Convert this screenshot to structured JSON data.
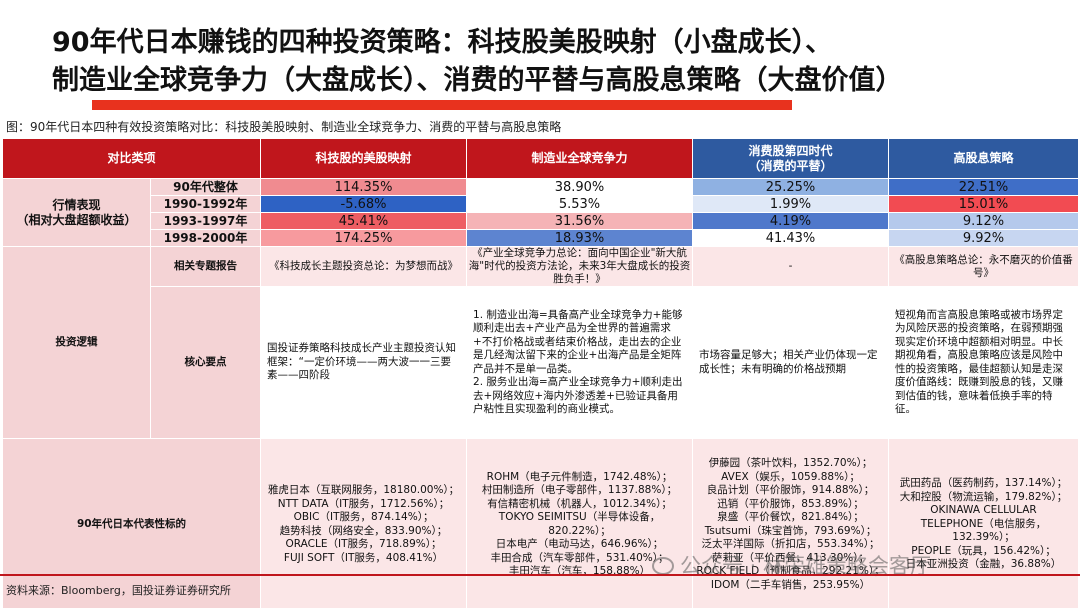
{
  "title": {
    "line1": "90年代日本赚钱的四种投资策略：科技股美股映射（小盘成长）、",
    "line2": "制造业全球竞争力（大盘成长）、消费的平替与高股息策略（大盘价值）"
  },
  "caption": "图：90年代日本四种有效投资策略对比：科技股美股映射、制造业全球竞争力、消费的平替与高股息策略",
  "header": {
    "col0": "对比类项",
    "col1": "科技股的美股映射",
    "col2": "制造业全球竞争力",
    "col3_line1": "消费股第四时代",
    "col3_line2": "（消费的平替）",
    "col4": "高股息策略"
  },
  "performance": {
    "label_line1": "行情表现",
    "label_line2": "（相对大盘超额收益）",
    "rows": [
      {
        "period": "90年代整体",
        "values": [
          "114.35%",
          "38.90%",
          "25.25%",
          "22.51%"
        ],
        "colors": [
          "#f08b90",
          "#ffffff",
          "#8fb1e2",
          "#3f6ec7"
        ]
      },
      {
        "period": "1990-1992年",
        "values": [
          "-5.68%",
          "5.53%",
          "1.99%",
          "15.01%"
        ],
        "colors": [
          "#2e62c4",
          "#ffffff",
          "#dfe8f7",
          "#f24b52"
        ]
      },
      {
        "period": "1993-1997年",
        "values": [
          "45.41%",
          "31.56%",
          "4.19%",
          "9.12%"
        ],
        "colors": [
          "#ee5d63",
          "#f5b3b6",
          "#4f78cb",
          "#b5c9ec"
        ]
      },
      {
        "period": "1998-2000年",
        "values": [
          "174.25%",
          "18.93%",
          "41.43%",
          "9.92%"
        ],
        "colors": [
          "#f79a9e",
          "#5d84d0",
          "#ffffff",
          "#c7d6f1"
        ]
      }
    ]
  },
  "logic": {
    "section_label": "投资逻辑",
    "report_label": "相关专题报告",
    "reports": [
      "《科技成长主题投资总论：为梦想而战》",
      "《产业全球竞争力总论：面向中国企业\"新大航海\"时代的投资方法论，未来3年大盘成长的投资胜负手！》",
      "-",
      "《高股息策略总论：永不磨灭的价值番号》"
    ],
    "core_label": "核心要点",
    "core": [
      "国投证券策略科技成长产业主题投资认知框架：“一定价环境——两大波一一三要素——四阶段",
      "1. 制造业出海=具备高产业全球竞争力+能够顺利走出去+产业产品为全世界的普遍需求+不打价格战或者结束价格战，走出去的企业是几经淘汰留下来的企业+出海产品是全矩阵产品并不是单一品类。\n2. 服务业出海=高产业全球竞争力+顺利走出去+网络效应+海内外渗透差+已验证具备用户粘性且实现盈利的商业模式。",
      "市场容量足够大；相关产业仍体现一定成长性；未有明确的价格战预期",
      "短视角而言高股息策略或被市场界定为风险厌恶的投资策略，在弱预期强现实定价环境中超额相对明显。中长期视角看，高股息策略应该是风险中性的投资策略，最佳超额认知是走深度价值路线：既赚到股息的钱，又赚到估值的钱，意味着低换手率的特征。"
    ]
  },
  "stocks": {
    "label": "90年代日本代表性标的",
    "col1": [
      "雅虎日本（互联网服务，18180.00%）；",
      "NTT DATA（IT服务，1712.56%）；",
      "OBIC（IT服务，874.14%）；",
      "趋势科技（网络安全，833.90%）；",
      "ORACLE（IT服务，718.89%）；",
      "FUJI SOFT（IT服务，408.41%）"
    ],
    "col2": [
      "ROHM（电子元件制造，1742.48%）；",
      "村田制造所（电子零部件，1137.88%）；",
      "有信精密机械（机器人，1012.34%）；",
      "TOKYO SEIMITSU（半导体设备，",
      "820.22%）；",
      "日本电产（电动马达，646.96%）；",
      "丰田合成（汽车零部件，531.40%）；",
      "丰田汽车（汽车，158.88%）"
    ],
    "col3": [
      "伊藤园（茶叶饮料，1352.70%）；",
      "AVEX（娱乐，1059.88%）；",
      "良品计划（平价服饰，914.88%）；",
      "迅销（平价服饰，853.89%）；",
      "泉盛（平价餐饮，821.84%）；",
      "Tsutsumi（珠宝首饰，793.69%）；",
      "泛太平洋国际（折扣店，553.34%）；",
      "萨莉亚（平价西餐，413.30%）；",
      "ROCK FIELD（预制食品，292.21%）；",
      "IDOM（二手车销售，253.95%）"
    ],
    "col4": [
      "武田药品（医药制药，137.14%）；",
      "大和控股（物流运输，179.82%）；",
      "OKINAWA CELLULAR",
      "TELEPHONE（电信服务，",
      "132.39%）；",
      "PEOPLE（玩具，156.42%）；",
      "日本亚洲投资（金融，36.88%）"
    ]
  },
  "source": "资料来源：Bloomberg，国投证券证券研究所",
  "watermark": "公众号 · 林荣雄策略会客厅"
}
